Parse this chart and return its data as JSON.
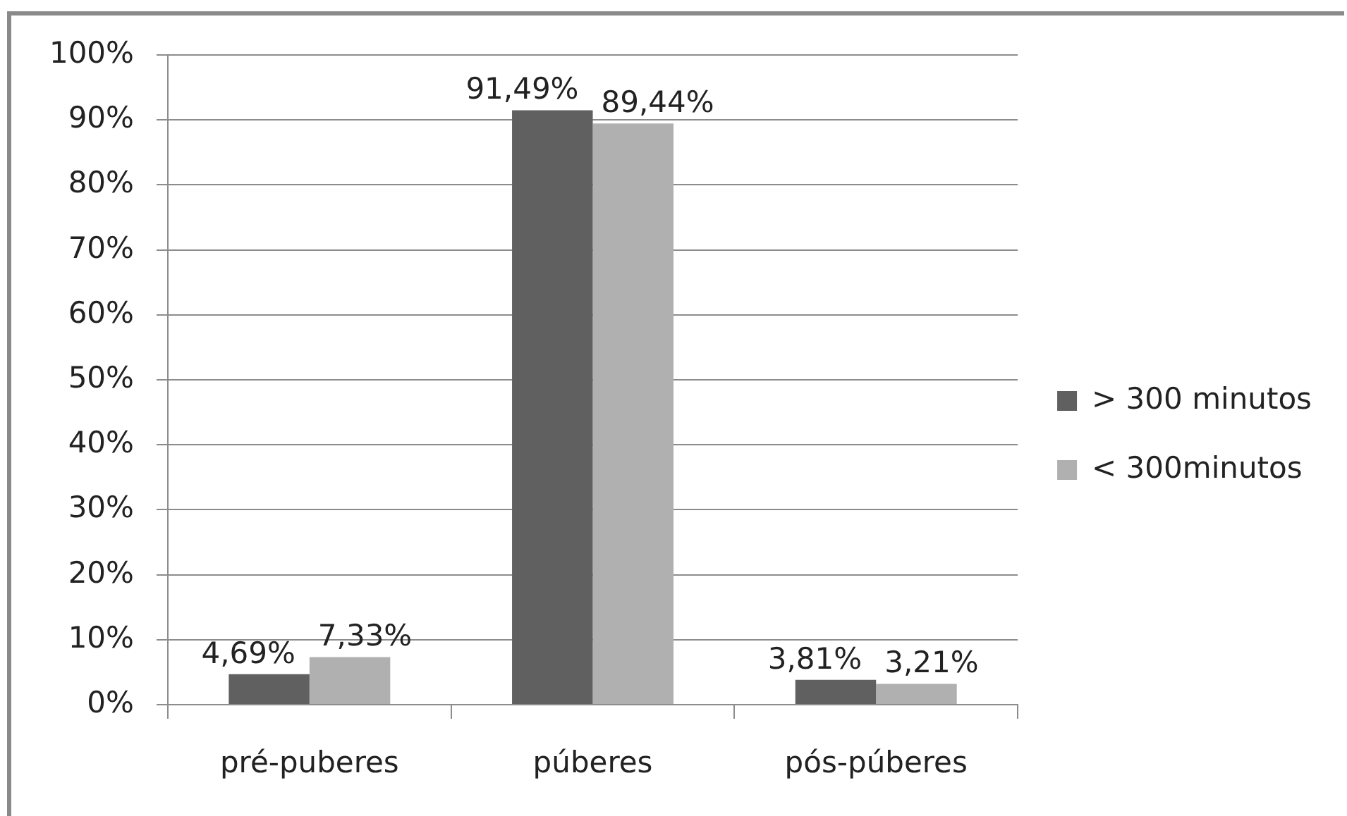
{
  "chart_data": {
    "type": "bar",
    "categories": [
      "pré-puberes",
      "púberes",
      "pós-púberes"
    ],
    "series": [
      {
        "name": "> 300 minutos",
        "color": "#606060",
        "values": [
          4.69,
          91.49,
          3.81
        ],
        "value_labels": [
          "4,69%",
          "91,49%",
          "3,81%"
        ]
      },
      {
        "name": "< 300minutos",
        "color": "#b0b0b0",
        "values": [
          7.33,
          89.44,
          3.21
        ],
        "value_labels": [
          "7,33%",
          "89,44%",
          "3,21%"
        ]
      }
    ],
    "ylim": [
      0,
      100
    ],
    "yticks": [
      {
        "value": 0,
        "label": "0%"
      },
      {
        "value": 10,
        "label": "10%"
      },
      {
        "value": 20,
        "label": "20%"
      },
      {
        "value": 30,
        "label": "30%"
      },
      {
        "value": 40,
        "label": "40%"
      },
      {
        "value": 50,
        "label": "50%"
      },
      {
        "value": 60,
        "label": "60%"
      },
      {
        "value": 70,
        "label": "70%"
      },
      {
        "value": 80,
        "label": "80%"
      },
      {
        "value": 90,
        "label": "90%"
      },
      {
        "value": 100,
        "label": "100%"
      }
    ],
    "grid": "y",
    "legend": "right"
  }
}
